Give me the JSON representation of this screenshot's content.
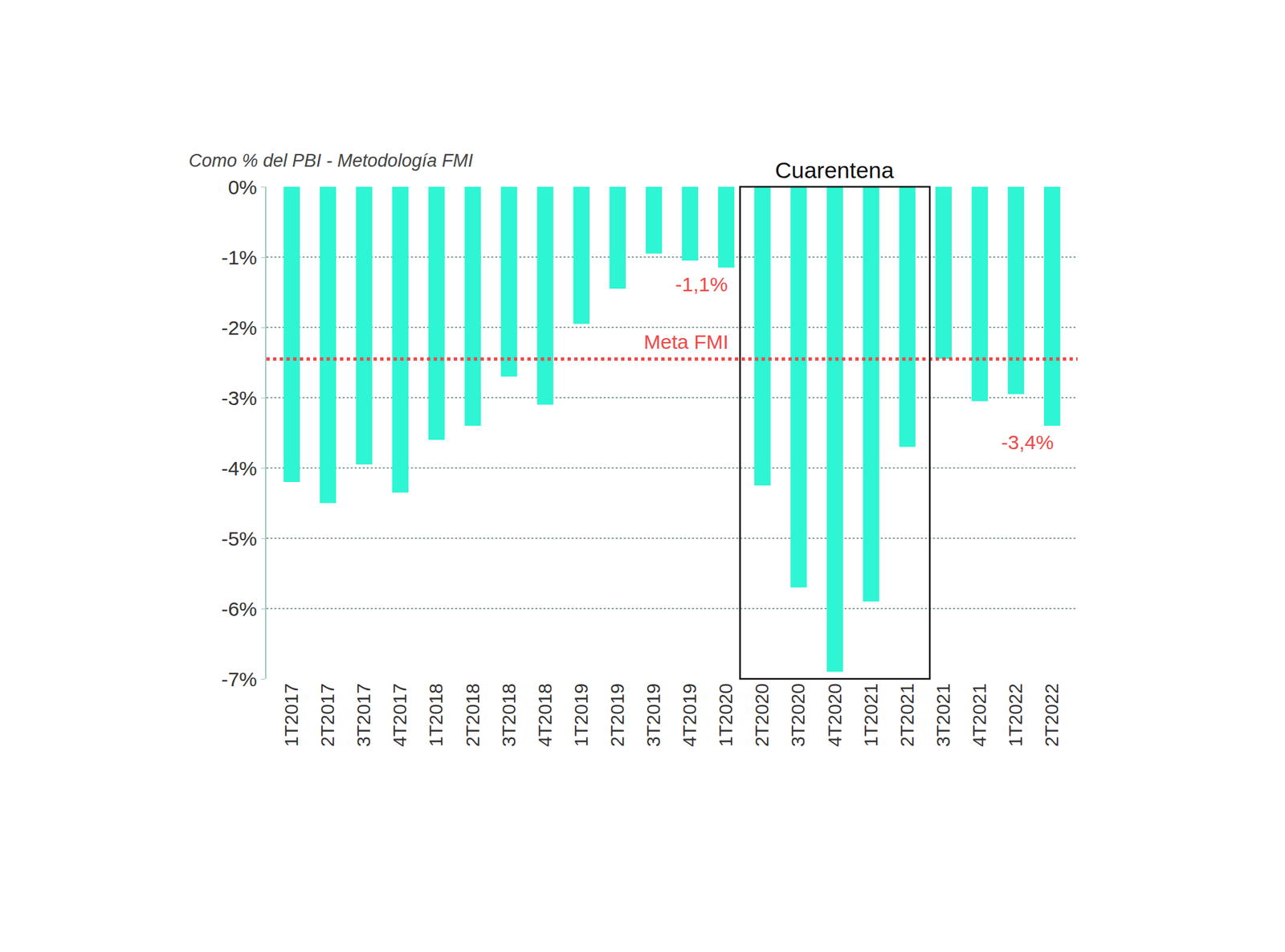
{
  "chart_data": {
    "type": "bar",
    "subtitle": "Como % del PBI - Metodología FMI",
    "categories": [
      "1T2017",
      "2T2017",
      "3T2017",
      "4T2017",
      "1T2018",
      "2T2018",
      "3T2018",
      "4T2018",
      "1T2019",
      "2T2019",
      "3T2019",
      "4T2019",
      "1T2020",
      "2T2020",
      "3T2020",
      "4T2020",
      "1T2021",
      "2T2021",
      "3T2021",
      "4T2021",
      "1T2022",
      "2T2022"
    ],
    "values": [
      -4.2,
      -4.5,
      -3.95,
      -4.35,
      -3.6,
      -3.4,
      -2.7,
      -3.1,
      -1.95,
      -1.45,
      -0.95,
      -1.05,
      -1.15,
      -4.25,
      -5.7,
      -6.9,
      -5.9,
      -3.7,
      -2.45,
      -3.05,
      -2.95,
      -3.4
    ],
    "color": "#2ef5d3",
    "ylim": [
      -7,
      0
    ],
    "yticks": [
      {
        "value": 0,
        "label": "0%"
      },
      {
        "value": -1,
        "label": "-1%"
      },
      {
        "value": -2,
        "label": "-2%"
      },
      {
        "value": -3,
        "label": "-3%"
      },
      {
        "value": -4,
        "label": "-4%"
      },
      {
        "value": -5,
        "label": "-5%"
      },
      {
        "value": -6,
        "label": "-6%"
      },
      {
        "value": -7,
        "label": "-7%"
      }
    ],
    "grid": true,
    "target": {
      "label": "Meta FMI",
      "value": -2.45,
      "color": "#f04848"
    },
    "highlight": {
      "label": "Cuarentena",
      "from": "2T2020",
      "to": "2T2021"
    },
    "annotations": [
      {
        "text": "-1,1%",
        "category": "1T2020"
      },
      {
        "text": "-3,4%",
        "category": "2T2022"
      }
    ]
  }
}
